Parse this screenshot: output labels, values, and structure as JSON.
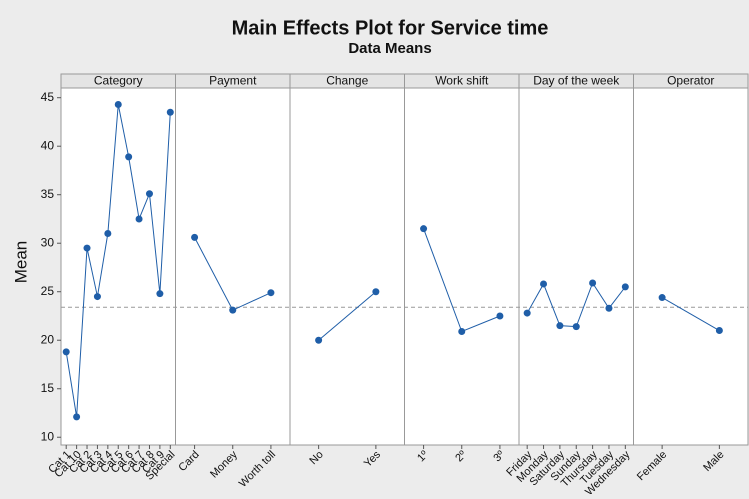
{
  "chart_data": {
    "type": "line",
    "title": "Main Effects Plot for Service time",
    "subtitle": "Data Means",
    "ylabel": "Mean",
    "ylim": [
      9.2,
      46
    ],
    "yticks": [
      10,
      15,
      20,
      25,
      30,
      35,
      40,
      45
    ],
    "reference_line": 23.4,
    "color": "#1f5ea8",
    "panels": [
      {
        "name": "Category",
        "categories": [
          "Cat 1",
          "Cat 10",
          "Cat 2",
          "Cat 3",
          "Cat 4",
          "Cat 5",
          "Cat 6",
          "Cat 7",
          "Cat 8",
          "Cat 9",
          "Special"
        ],
        "values": [
          18.8,
          12.1,
          29.5,
          24.5,
          31.0,
          44.3,
          38.9,
          32.5,
          35.1,
          24.8,
          43.5
        ]
      },
      {
        "name": "Payment",
        "categories": [
          "Card",
          "Money",
          "Worth toll"
        ],
        "values": [
          30.6,
          23.1,
          24.9
        ]
      },
      {
        "name": "Change",
        "categories": [
          "No",
          "Yes"
        ],
        "values": [
          20.0,
          25.0
        ]
      },
      {
        "name": "Work shift",
        "categories": [
          "1º",
          "2º",
          "3º"
        ],
        "values": [
          31.5,
          20.9,
          22.5
        ]
      },
      {
        "name": "Day of the week",
        "categories": [
          "Friday",
          "Monday",
          "Saturday",
          "Sunday",
          "Thursday",
          "Tuesday",
          "Wednesday"
        ],
        "values": [
          22.8,
          25.8,
          21.5,
          21.4,
          25.9,
          23.3,
          25.5
        ]
      },
      {
        "name": "Operator",
        "categories": [
          "Female",
          "Male"
        ],
        "values": [
          24.4,
          21.0
        ]
      }
    ]
  }
}
